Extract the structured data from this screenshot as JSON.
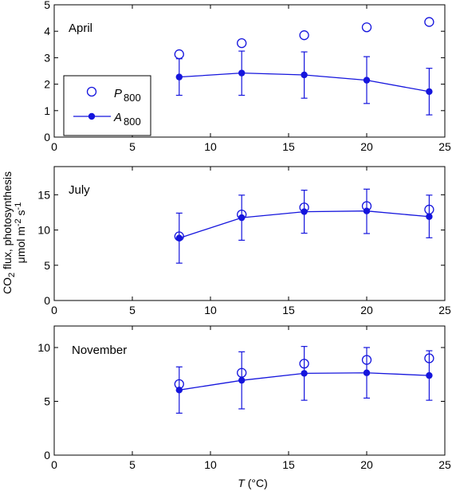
{
  "chart_data": [
    {
      "type": "line",
      "annotation": "April",
      "x": [
        8,
        12,
        16,
        20,
        24
      ],
      "series": [
        {
          "name": "P800",
          "marker": "open-circle",
          "values": [
            3.13,
            3.55,
            3.85,
            4.15,
            4.35
          ]
        },
        {
          "name": "A800",
          "marker": "filled-circle-line",
          "values": [
            2.27,
            2.42,
            2.35,
            2.15,
            1.72
          ],
          "err_low": [
            1.58,
            1.58,
            1.47,
            1.27,
            0.84
          ],
          "err_high": [
            2.96,
            3.25,
            3.22,
            3.04,
            2.6
          ]
        }
      ],
      "xlim": [
        0,
        25
      ],
      "ylim": [
        0,
        5
      ],
      "xticks": [
        0,
        5,
        10,
        15,
        20,
        25
      ],
      "yticks": [
        0,
        1,
        2,
        3,
        4,
        5
      ],
      "legend_position": "left"
    },
    {
      "type": "line",
      "annotation": "July",
      "x": [
        8,
        12,
        16,
        20,
        24
      ],
      "series": [
        {
          "name": "P800",
          "marker": "open-circle",
          "values": [
            9.1,
            12.2,
            13.2,
            13.4,
            12.9
          ]
        },
        {
          "name": "A800",
          "marker": "filled-circle-line",
          "values": [
            8.85,
            11.75,
            12.6,
            12.7,
            11.9
          ],
          "err_low": [
            5.3,
            8.55,
            9.55,
            9.5,
            8.9
          ],
          "err_high": [
            12.4,
            14.95,
            15.65,
            15.8,
            14.95
          ]
        }
      ],
      "xlim": [
        0,
        25
      ],
      "ylim": [
        0,
        19
      ],
      "xticks": [
        0,
        5,
        10,
        15,
        20,
        25
      ],
      "yticks": [
        0,
        5,
        10,
        15
      ]
    },
    {
      "type": "line",
      "annotation": "November",
      "x": [
        8,
        12,
        16,
        20,
        24
      ],
      "series": [
        {
          "name": "P800",
          "marker": "open-circle",
          "values": [
            6.6,
            7.65,
            8.5,
            8.85,
            9.0
          ]
        },
        {
          "name": "A800",
          "marker": "filled-circle-line",
          "values": [
            6.05,
            6.95,
            7.6,
            7.65,
            7.4
          ],
          "err_low": [
            3.9,
            4.3,
            5.1,
            5.3,
            5.1
          ],
          "err_high": [
            8.2,
            9.6,
            10.1,
            10.0,
            9.7
          ]
        }
      ],
      "xlim": [
        0,
        25
      ],
      "ylim": [
        0,
        12
      ],
      "xticks": [
        0,
        5,
        10,
        15,
        20,
        25
      ],
      "yticks": [
        0,
        5,
        10
      ]
    }
  ],
  "legend": {
    "p_symbol": "P",
    "p_sub": "800",
    "a_symbol": "A",
    "a_sub": "800"
  },
  "labels": {
    "ylabel_co2": "CO",
    "ylabel_co2_sub": "2",
    "ylabel_rest": " flux, photosynthesis",
    "ylabel_unit_mu": "μmol m",
    "ylabel_unit_exp1": "-2",
    "ylabel_unit_s": " s",
    "ylabel_unit_exp2": "-1",
    "xlabel_symbol": "T",
    "xlabel_unit": " (°C)"
  },
  "colors": {
    "series": "#1515dd",
    "axes": "#000000"
  }
}
